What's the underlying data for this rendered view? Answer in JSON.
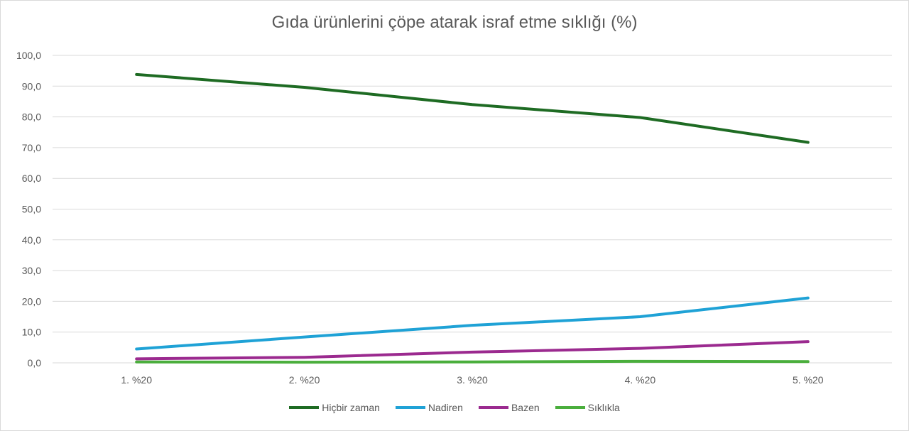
{
  "chart_data": {
    "type": "line",
    "title": "Gıda ürünlerini çöpe atarak israf etme sıklığı (%)",
    "xlabel": "",
    "ylabel": "",
    "categories": [
      "1. %20",
      "2. %20",
      "3. %20",
      "4. %20",
      "5. %20"
    ],
    "ylim": [
      0,
      100
    ],
    "yticks": [
      "0,0",
      "10,0",
      "20,0",
      "30,0",
      "40,0",
      "50,0",
      "60,0",
      "70,0",
      "80,0",
      "90,0",
      "100,0"
    ],
    "grid": true,
    "legend_position": "bottom",
    "series": [
      {
        "name": "Hiçbir zaman",
        "color": "#1e6b23",
        "values": [
          93.8,
          89.6,
          84.0,
          79.8,
          71.7
        ]
      },
      {
        "name": "Nadiren",
        "color": "#1fa2d6",
        "values": [
          4.5,
          8.4,
          12.2,
          15.0,
          21.1
        ]
      },
      {
        "name": "Bazen",
        "color": "#9b2a8f",
        "values": [
          1.3,
          1.8,
          3.5,
          4.7,
          6.9
        ]
      },
      {
        "name": "Sıklıkla",
        "color": "#4aae3c",
        "values": [
          0.3,
          0.2,
          0.3,
          0.5,
          0.4
        ]
      }
    ]
  }
}
